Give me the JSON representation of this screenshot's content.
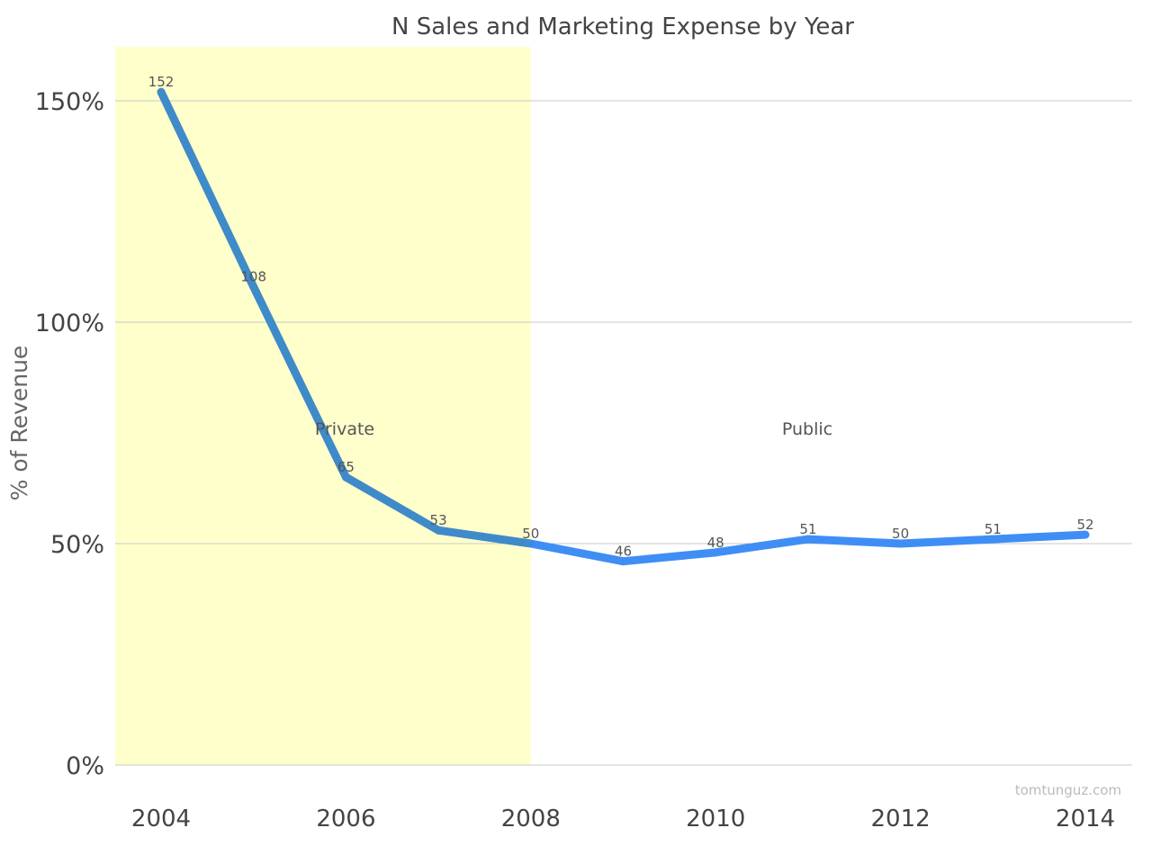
{
  "chart_data": {
    "type": "line",
    "title": "N Sales and Marketing Expense by Year",
    "ylabel": "% of Revenue",
    "xlabel": "",
    "x": [
      2004,
      2005,
      2006,
      2007,
      2008,
      2009,
      2010,
      2011,
      2012,
      2013,
      2014
    ],
    "series": [
      {
        "values": [
          152,
          108,
          65,
          53,
          50,
          46,
          48,
          51,
          50,
          51,
          52
        ]
      }
    ],
    "data_labels": [
      "152",
      "108",
      "65",
      "53",
      "50",
      "46",
      "48",
      "51",
      "50",
      "51",
      "52"
    ],
    "xlim": [
      2003.75,
      2014.5
    ],
    "ylim": [
      0,
      162
    ],
    "x_ticks": [
      2004,
      2006,
      2008,
      2010,
      2012,
      2014
    ],
    "x_tick_labels": [
      "2004",
      "2006",
      "2008",
      "2010",
      "2012",
      "2014"
    ],
    "y_ticks": [
      0,
      50,
      100,
      150
    ],
    "y_tick_labels": [
      "0%",
      "50%",
      "100%",
      "150%"
    ],
    "grid": true,
    "regions": [
      {
        "label": "Private",
        "from": 2003.5,
        "to": 2008,
        "color": "#ffffcc"
      },
      {
        "label": "Public",
        "from": 2008,
        "to": 2014.5,
        "color": "#ffffff"
      }
    ],
    "line_color_private": "#3f8ac9",
    "line_color_public": "#3f8ef5",
    "grid_color": "#c8c8c8"
  },
  "watermark": "tomtunguz.com"
}
